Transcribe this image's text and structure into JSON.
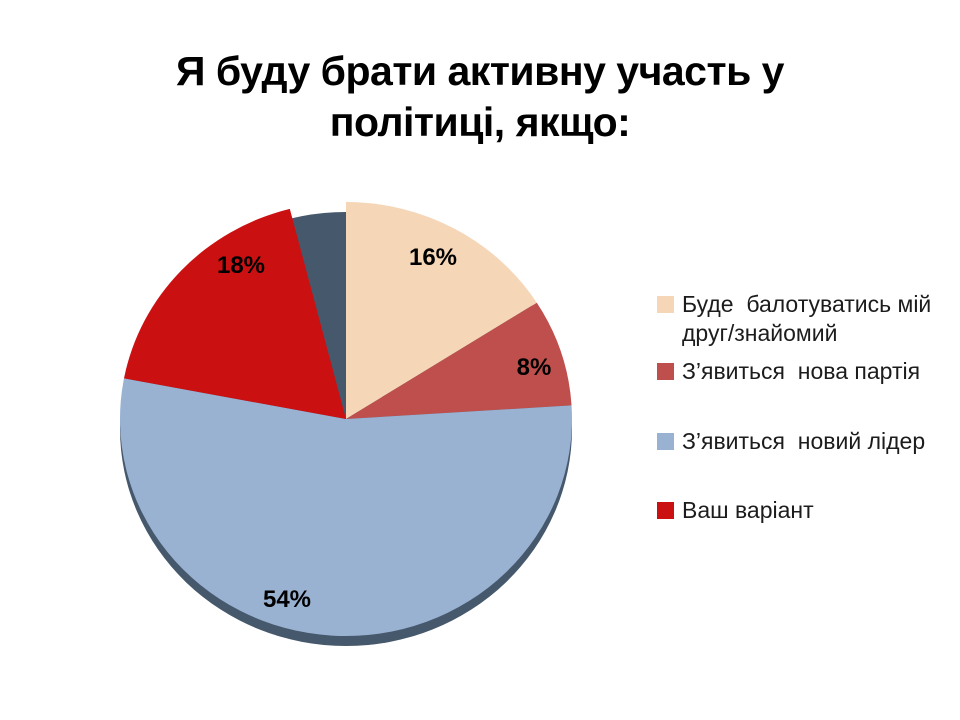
{
  "title": {
    "line1": "Я буду брати активну участь у",
    "line2": "політиці, якщо:"
  },
  "chart_data": {
    "type": "pie",
    "title": "Я буду брати активну участь у політиці, якщо:",
    "unit": "percent",
    "direction": "clockwise",
    "start_angle_deg": 0,
    "slices": [
      {
        "label": "Буде  балотуватись мій друг/знайомий",
        "value": 16,
        "display": "16%",
        "color": "#F5D6B7"
      },
      {
        "label": "З’явиться  нова партія",
        "value": 8,
        "display": "8%",
        "color": "#BE4F4C"
      },
      {
        "label": "З’явиться  новий лідер",
        "value": 54,
        "display": "54%",
        "color": "#9AB2D2"
      },
      {
        "label": "Ваш варіант",
        "value": 18,
        "display": "18%",
        "color": "#CB1012"
      }
    ],
    "legend_position": "right",
    "effect_3d": true,
    "rim_color": "#46586B",
    "background": "#FFFFFF",
    "label_color": "#000000"
  }
}
